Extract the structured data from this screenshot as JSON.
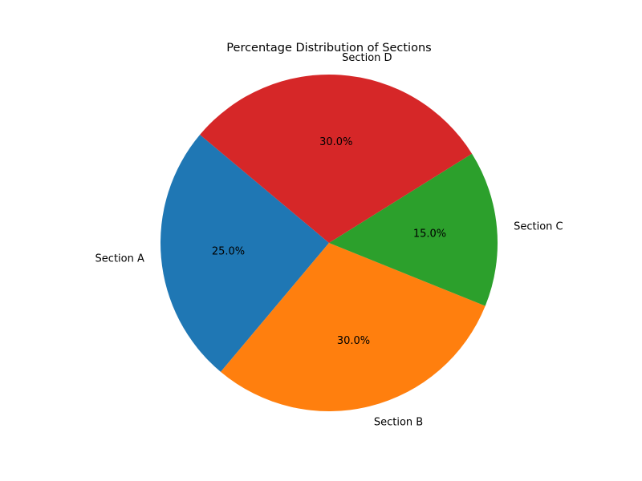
{
  "chart_data": {
    "type": "pie",
    "title": "Percentage Distribution of Sections",
    "categories": [
      "Section A",
      "Section B",
      "Section C",
      "Section D"
    ],
    "values": [
      25.0,
      30.0,
      15.0,
      30.0
    ],
    "value_labels": [
      "25.0%",
      "30.0%",
      "15.0%",
      "30.0%"
    ],
    "colors": [
      "#1f77b4",
      "#ff7f0e",
      "#2ca02c",
      "#d62728"
    ],
    "start_angle_deg": 140,
    "direction": "counterclockwise",
    "legend": "none"
  }
}
